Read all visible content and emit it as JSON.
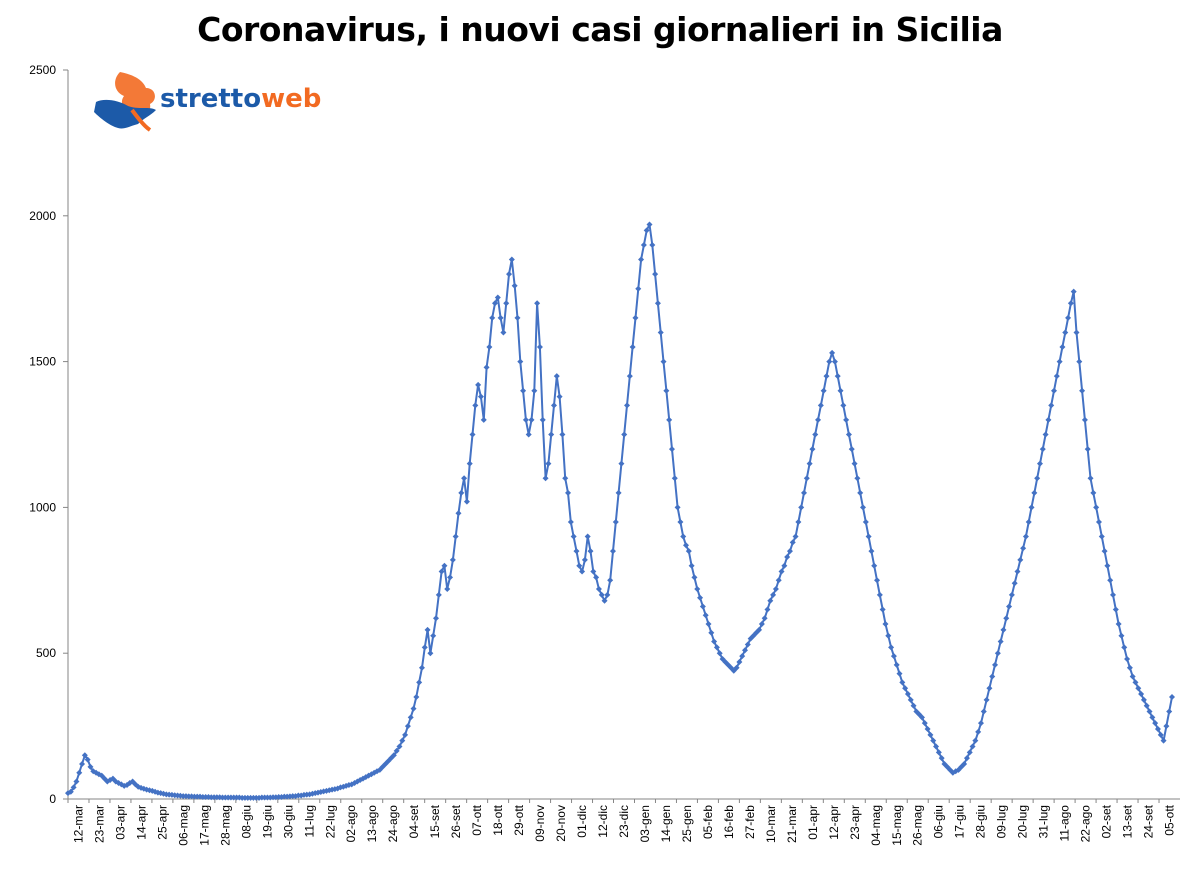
{
  "title": "Coronavirus, i nuovi casi giornalieri in Sicilia",
  "logo": {
    "text_a": "stretto",
    "text_b": "web",
    "color_a": "#1c5aa8",
    "color_b": "#f26a21"
  },
  "colors": {
    "series": "#4472c4",
    "axis": "#868686"
  },
  "chart_data": {
    "type": "line",
    "title": "Coronavirus, i nuovi casi giornalieri in Sicilia",
    "xlabel": "",
    "ylabel": "",
    "ylim": [
      0,
      2500
    ],
    "yticks": [
      0,
      500,
      1000,
      1500,
      2000,
      2500
    ],
    "legend": "none",
    "grid": false,
    "x_tick_labels": [
      "12-mar",
      "23-mar",
      "03-apr",
      "14-apr",
      "25-apr",
      "06-mag",
      "17-mag",
      "28-mag",
      "08-giu",
      "19-giu",
      "30-giu",
      "11-lug",
      "22-lug",
      "02-ago",
      "13-ago",
      "24-ago",
      "04-set",
      "15-set",
      "26-set",
      "07-ott",
      "18-ott",
      "29-ott",
      "09-nov",
      "20-nov",
      "01-dic",
      "12-dic",
      "23-dic",
      "03-gen",
      "14-gen",
      "25-gen",
      "05-feb",
      "16-feb",
      "27-feb",
      "10-mar",
      "21-mar",
      "01-apr",
      "12-apr",
      "23-apr",
      "04-mag",
      "15-mag",
      "26-mag",
      "06-giu",
      "17-giu",
      "28-giu",
      "09-lug",
      "20-lug",
      "31-lug",
      "11-ago",
      "22-ago",
      "02-set",
      "13-set",
      "24-set",
      "05-ott"
    ],
    "series": [
      {
        "values": [
          20,
          25,
          40,
          60,
          90,
          120,
          150,
          135,
          110,
          95,
          90,
          85,
          80,
          70,
          60,
          65,
          70,
          60,
          55,
          50,
          45,
          48,
          55,
          60,
          50,
          42,
          38,
          35,
          32,
          30,
          28,
          25,
          22,
          20,
          18,
          16,
          15,
          14,
          13,
          12,
          11,
          10,
          10,
          9,
          9,
          8,
          8,
          8,
          7,
          7,
          7,
          6,
          6,
          6,
          6,
          5,
          5,
          5,
          5,
          5,
          5,
          5,
          4,
          4,
          4,
          4,
          4,
          4,
          4,
          5,
          5,
          5,
          5,
          6,
          6,
          7,
          7,
          8,
          8,
          9,
          10,
          10,
          12,
          12,
          14,
          15,
          16,
          18,
          20,
          22,
          24,
          26,
          28,
          30,
          32,
          34,
          36,
          40,
          42,
          45,
          48,
          50,
          55,
          60,
          65,
          70,
          75,
          80,
          85,
          90,
          95,
          100,
          110,
          120,
          130,
          140,
          150,
          165,
          180,
          200,
          220,
          250,
          280,
          310,
          350,
          400,
          450,
          520,
          580,
          500,
          560,
          620,
          700,
          780,
          800,
          720,
          760,
          820,
          900,
          980,
          1050,
          1100,
          1020,
          1150,
          1250,
          1350,
          1420,
          1380,
          1300,
          1480,
          1550,
          1650,
          1700,
          1720,
          1650,
          1600,
          1700,
          1800,
          1850,
          1760,
          1650,
          1500,
          1400,
          1300,
          1250,
          1300,
          1400,
          1700,
          1550,
          1300,
          1100,
          1150,
          1250,
          1350,
          1450,
          1380,
          1250,
          1100,
          1050,
          950,
          900,
          850,
          800,
          780,
          820,
          900,
          850,
          780,
          760,
          720,
          700,
          680,
          700,
          750,
          850,
          950,
          1050,
          1150,
          1250,
          1350,
          1450,
          1550,
          1650,
          1750,
          1850,
          1900,
          1950,
          1970,
          1900,
          1800,
          1700,
          1600,
          1500,
          1400,
          1300,
          1200,
          1100,
          1000,
          950,
          900,
          870,
          850,
          800,
          760,
          720,
          690,
          660,
          630,
          600,
          570,
          540,
          520,
          500,
          480,
          470,
          460,
          450,
          440,
          450,
          470,
          490,
          510,
          530,
          550,
          560,
          570,
          580,
          600,
          620,
          650,
          680,
          700,
          720,
          750,
          780,
          800,
          830,
          850,
          880,
          900,
          950,
          1000,
          1050,
          1100,
          1150,
          1200,
          1250,
          1300,
          1350,
          1400,
          1450,
          1500,
          1530,
          1500,
          1450,
          1400,
          1350,
          1300,
          1250,
          1200,
          1150,
          1100,
          1050,
          1000,
          950,
          900,
          850,
          800,
          750,
          700,
          650,
          600,
          560,
          520,
          490,
          460,
          430,
          400,
          380,
          360,
          340,
          320,
          300,
          290,
          280,
          260,
          240,
          220,
          200,
          180,
          160,
          140,
          120,
          110,
          100,
          90,
          95,
          100,
          110,
          120,
          140,
          160,
          180,
          200,
          230,
          260,
          300,
          340,
          380,
          420,
          460,
          500,
          540,
          580,
          620,
          660,
          700,
          740,
          780,
          820,
          860,
          900,
          950,
          1000,
          1050,
          1100,
          1150,
          1200,
          1250,
          1300,
          1350,
          1400,
          1450,
          1500,
          1550,
          1600,
          1650,
          1700,
          1740,
          1600,
          1500,
          1400,
          1300,
          1200,
          1100,
          1050,
          1000,
          950,
          900,
          850,
          800,
          750,
          700,
          650,
          600,
          560,
          520,
          480,
          450,
          420,
          400,
          380,
          360,
          340,
          320,
          300,
          280,
          260,
          240,
          220,
          200,
          250,
          300,
          350
        ]
      }
    ]
  }
}
